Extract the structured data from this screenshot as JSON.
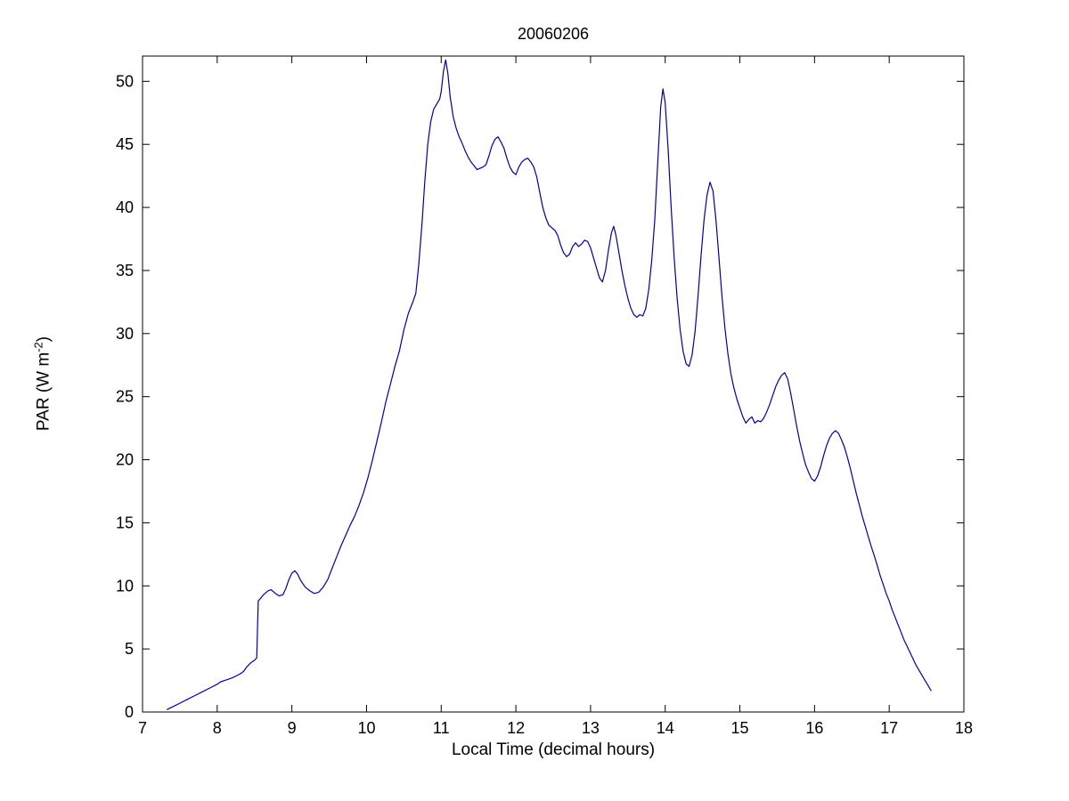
{
  "figure": {
    "ylabel_pre": "PAR (W m",
    "ylabel_sup": "-2",
    "ylabel_post": ")"
  },
  "chart_data": {
    "type": "line",
    "title": "20060206",
    "xlabel": "Local Time (decimal hours)",
    "ylabel": "PAR (W m^-2)",
    "xlim": [
      7,
      18
    ],
    "ylim": [
      0,
      52
    ],
    "xticks": [
      7,
      8,
      9,
      10,
      11,
      12,
      13,
      14,
      15,
      16,
      17,
      18
    ],
    "yticks": [
      0,
      5,
      10,
      15,
      20,
      25,
      30,
      35,
      40,
      45,
      50
    ],
    "grid": false,
    "legend": null,
    "line_color": "#00009c",
    "axis_color": "#000000",
    "x": [
      7.33,
      7.4,
      7.5,
      7.6,
      7.7,
      7.8,
      7.9,
      8.0,
      8.05,
      8.1,
      8.2,
      8.3,
      8.35,
      8.4,
      8.45,
      8.5,
      8.53,
      8.55,
      8.58,
      8.62,
      8.68,
      8.72,
      8.78,
      8.83,
      8.88,
      8.92,
      8.96,
      9.0,
      9.04,
      9.08,
      9.12,
      9.18,
      9.24,
      9.3,
      9.36,
      9.42,
      9.48,
      9.54,
      9.6,
      9.66,
      9.72,
      9.78,
      9.84,
      9.9,
      9.96,
      10.02,
      10.08,
      10.14,
      10.2,
      10.26,
      10.32,
      10.38,
      10.44,
      10.5,
      10.56,
      10.62,
      10.66,
      10.7,
      10.74,
      10.78,
      10.82,
      10.86,
      10.9,
      10.94,
      10.98,
      11.0,
      11.03,
      11.06,
      11.09,
      11.12,
      11.16,
      11.2,
      11.24,
      11.28,
      11.32,
      11.36,
      11.4,
      11.44,
      11.48,
      11.52,
      11.56,
      11.6,
      11.64,
      11.68,
      11.72,
      11.76,
      11.8,
      11.84,
      11.88,
      11.92,
      11.96,
      12.0,
      12.04,
      12.08,
      12.12,
      12.16,
      12.2,
      12.24,
      12.28,
      12.32,
      12.36,
      12.4,
      12.44,
      12.48,
      12.52,
      12.56,
      12.6,
      12.64,
      12.68,
      12.72,
      12.76,
      12.8,
      12.84,
      12.88,
      12.92,
      12.96,
      13.0,
      13.04,
      13.08,
      13.12,
      13.16,
      13.2,
      13.24,
      13.28,
      13.31,
      13.34,
      13.38,
      13.42,
      13.46,
      13.5,
      13.54,
      13.58,
      13.62,
      13.66,
      13.7,
      13.74,
      13.78,
      13.82,
      13.86,
      13.9,
      13.94,
      13.97,
      14.0,
      14.04,
      14.08,
      14.12,
      14.16,
      14.2,
      14.24,
      14.28,
      14.32,
      14.36,
      14.4,
      14.44,
      14.48,
      14.52,
      14.56,
      14.6,
      14.64,
      14.68,
      14.72,
      14.76,
      14.8,
      14.84,
      14.88,
      14.92,
      14.96,
      15.0,
      15.04,
      15.08,
      15.12,
      15.16,
      15.2,
      15.24,
      15.28,
      15.32,
      15.36,
      15.4,
      15.44,
      15.48,
      15.52,
      15.56,
      15.6,
      15.64,
      15.68,
      15.72,
      15.76,
      15.8,
      15.84,
      15.88,
      15.92,
      15.96,
      16.0,
      16.04,
      16.08,
      16.12,
      16.16,
      16.2,
      16.24,
      16.28,
      16.32,
      16.36,
      16.4,
      16.44,
      16.48,
      16.52,
      16.56,
      16.6,
      16.64,
      16.68,
      16.72,
      16.76,
      16.8,
      16.84,
      16.88,
      16.92,
      16.96,
      17.0,
      17.04,
      17.08,
      17.12,
      17.16,
      17.2,
      17.24,
      17.28,
      17.32,
      17.36,
      17.4,
      17.44,
      17.48,
      17.52,
      17.56
    ],
    "y": [
      0.2,
      0.4,
      0.7,
      1.0,
      1.3,
      1.6,
      1.9,
      2.2,
      2.4,
      2.5,
      2.7,
      3.0,
      3.2,
      3.6,
      3.9,
      4.1,
      4.3,
      8.8,
      9.0,
      9.3,
      9.6,
      9.7,
      9.4,
      9.2,
      9.3,
      9.8,
      10.5,
      11.0,
      11.2,
      10.9,
      10.4,
      9.9,
      9.6,
      9.4,
      9.5,
      9.9,
      10.5,
      11.4,
      12.3,
      13.2,
      14.0,
      14.8,
      15.5,
      16.4,
      17.4,
      18.6,
      20.0,
      21.5,
      23.0,
      24.6,
      26.0,
      27.4,
      28.6,
      30.3,
      31.6,
      32.5,
      33.2,
      35.5,
      38.5,
      42.0,
      45.0,
      46.8,
      47.8,
      48.2,
      48.6,
      49.2,
      50.8,
      51.7,
      50.6,
      48.8,
      47.2,
      46.3,
      45.6,
      45.1,
      44.5,
      44.0,
      43.6,
      43.3,
      43.0,
      43.1,
      43.2,
      43.4,
      44.1,
      44.9,
      45.4,
      45.6,
      45.2,
      44.7,
      43.9,
      43.2,
      42.8,
      42.6,
      43.2,
      43.6,
      43.8,
      43.9,
      43.6,
      43.2,
      42.4,
      41.2,
      40.0,
      39.2,
      38.6,
      38.4,
      38.2,
      37.8,
      37.0,
      36.4,
      36.1,
      36.3,
      36.9,
      37.2,
      36.9,
      37.1,
      37.4,
      37.3,
      36.8,
      36.0,
      35.2,
      34.4,
      34.1,
      35.0,
      36.6,
      38.0,
      38.5,
      37.8,
      36.4,
      35.0,
      33.8,
      32.8,
      32.0,
      31.5,
      31.3,
      31.5,
      31.4,
      32.0,
      33.5,
      35.8,
      39.0,
      43.5,
      48.0,
      49.4,
      48.3,
      44.5,
      40.0,
      36.0,
      32.8,
      30.3,
      28.6,
      27.6,
      27.4,
      28.3,
      30.2,
      33.0,
      36.2,
      39.0,
      41.0,
      42.0,
      41.3,
      39.0,
      36.0,
      33.0,
      30.4,
      28.4,
      26.8,
      25.7,
      24.8,
      24.1,
      23.4,
      22.9,
      23.2,
      23.4,
      22.9,
      23.1,
      23.0,
      23.3,
      23.8,
      24.4,
      25.1,
      25.8,
      26.3,
      26.7,
      26.9,
      26.4,
      25.3,
      24.0,
      22.7,
      21.5,
      20.5,
      19.6,
      19.0,
      18.5,
      18.3,
      18.7,
      19.4,
      20.3,
      21.1,
      21.7,
      22.1,
      22.3,
      22.1,
      21.6,
      21.0,
      20.2,
      19.3,
      18.3,
      17.3,
      16.4,
      15.5,
      14.7,
      13.9,
      13.1,
      12.4,
      11.6,
      10.8,
      10.1,
      9.4,
      8.8,
      8.1,
      7.5,
      6.9,
      6.3,
      5.7,
      5.2,
      4.7,
      4.2,
      3.7,
      3.3,
      2.9,
      2.5,
      2.1,
      1.7
    ]
  }
}
